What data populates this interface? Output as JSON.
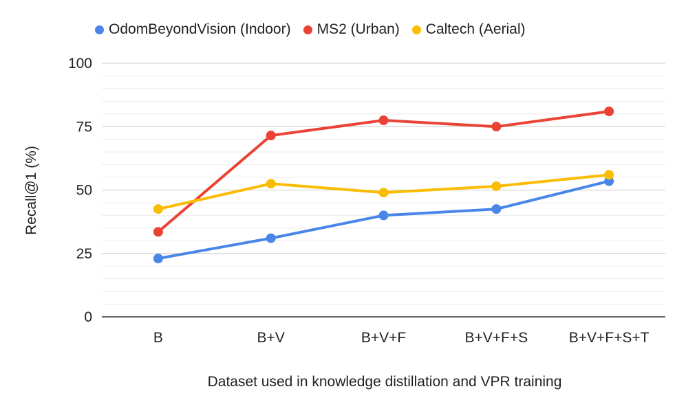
{
  "chart_data": {
    "type": "line",
    "title": "",
    "xlabel": "Dataset used in knowledge distillation and VPR training",
    "ylabel": "Recall@1 (%)",
    "categories": [
      "B",
      "B+V",
      "B+V+F",
      "B+V+F+S",
      "B+V+F+S+T"
    ],
    "ylim": [
      0,
      100
    ],
    "yticks": [
      0,
      25,
      50,
      75,
      100
    ],
    "minor_gridlines": true,
    "legend_position": "top",
    "series": [
      {
        "name": "OdomBeyondVision (Indoor)",
        "color": "#4a86e8",
        "values": [
          23,
          31,
          40,
          42.5,
          53.5
        ]
      },
      {
        "name": "MS2 (Urban)",
        "color": "#ea4335",
        "values": [
          33.5,
          71.5,
          77.5,
          75,
          81
        ]
      },
      {
        "name": "Caltech (Aerial)",
        "color": "#fbbc04",
        "values": [
          42.5,
          52.5,
          49,
          51.5,
          56
        ]
      }
    ]
  }
}
